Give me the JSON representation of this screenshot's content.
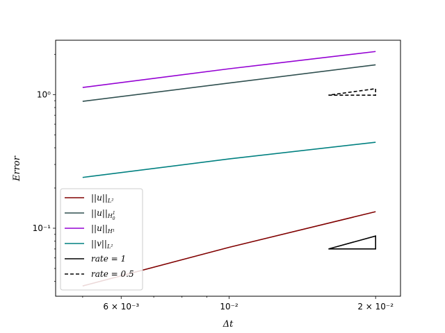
{
  "chart_data": {
    "type": "line",
    "xscale": "log",
    "yscale": "log",
    "xlabel": "Δt",
    "ylabel": "Error",
    "xlim": [
      0.0044,
      0.0225
    ],
    "ylim": [
      0.031,
      2.55
    ],
    "xticks": [
      {
        "value": 0.006,
        "label": "6 × 10⁻³"
      },
      {
        "value": 0.01,
        "label": "10⁻²"
      },
      {
        "value": 0.02,
        "label": "2 × 10⁻²"
      }
    ],
    "yticks": [
      {
        "value": 0.1,
        "label": "10⁻¹"
      },
      {
        "value": 1,
        "label": "10⁰"
      }
    ],
    "x": [
      0.005,
      0.01,
      0.02
    ],
    "series": [
      {
        "name": "||u||_{L²}",
        "color": "#800000",
        "values": [
          0.037,
          0.072,
          0.133
        ]
      },
      {
        "name": "||u||_{H₀¹}",
        "color": "#2f4f4f",
        "values": [
          0.89,
          1.22,
          1.67
        ]
      },
      {
        "name": "||u||_{H¹}",
        "color": "#9400d3",
        "values": [
          1.13,
          1.56,
          2.1
        ]
      },
      {
        "name": "||v||_{L²}",
        "color": "#008080",
        "values": [
          0.24,
          0.33,
          0.44
        ]
      }
    ],
    "rate_triangles": [
      {
        "name": "rate = 1",
        "style": "solid",
        "color": "#000000",
        "x0": 0.016,
        "x1": 0.02,
        "y0": 0.07,
        "rate": 1
      },
      {
        "name": "rate = 0.5",
        "style": "dashed",
        "color": "#000000",
        "x0": 0.016,
        "x1": 0.02,
        "y0": 0.99,
        "rate": 0.5
      }
    ],
    "legend": {
      "placement": "lower-left",
      "entries": [
        {
          "base": "||u||",
          "sub": "L²",
          "subsup": "",
          "color": "#800000",
          "style": "solid"
        },
        {
          "base": "||u||",
          "sub": "H",
          "subsup": "1 0",
          "color": "#2f4f4f",
          "style": "solid"
        },
        {
          "base": "||u||",
          "sub": "H¹",
          "subsup": "",
          "color": "#9400d3",
          "style": "solid"
        },
        {
          "base": "||v||",
          "sub": "L²",
          "subsup": "",
          "color": "#008080",
          "style": "solid"
        },
        {
          "base": "rate = 1",
          "sub": "",
          "subsup": "",
          "color": "#000000",
          "style": "solid"
        },
        {
          "base": "rate = 0.5",
          "sub": "",
          "subsup": "",
          "color": "#000000",
          "style": "dashed"
        }
      ]
    }
  }
}
